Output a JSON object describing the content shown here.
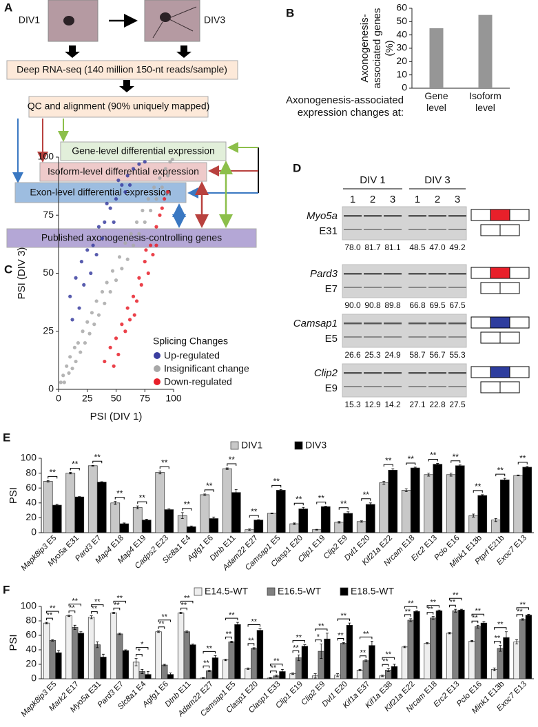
{
  "panel_labels": [
    "A",
    "B",
    "C",
    "D",
    "E",
    "F"
  ],
  "diagram": {
    "stage_labels": [
      "DIV1",
      "DIV3"
    ],
    "boxes": {
      "sequencing": "Deep RNA-seq (140 million 150-nt reads/sample)",
      "qc": "QC and alignment (90% uniquely mapped)",
      "gene": "Gene-level differential expression",
      "isoform": "Isoform-level differential expression",
      "exon": "Exon-level differential expression",
      "published": "Published axonogenesis-controlling genes"
    }
  },
  "gel": {
    "group_labels": [
      "DIV 1",
      "DIV 3"
    ],
    "lanes": [
      "1",
      "2",
      "3",
      "1",
      "2",
      "3"
    ],
    "rows": [
      {
        "gene": "Myo5a",
        "exon": "E31",
        "values": [
          "78.0",
          "81.7",
          "81.1",
          "48.5",
          "47.0",
          "49.2"
        ],
        "exon_color": "#e8202a"
      },
      {
        "gene": "Pard3",
        "exon": "E7",
        "values": [
          "90.0",
          "90.8",
          "89.8",
          "66.8",
          "69.5",
          "67.5"
        ],
        "exon_color": "#e8202a"
      },
      {
        "gene": "Camsap1",
        "exon": "E5",
        "values": [
          "26.6",
          "25.3",
          "24.9",
          "58.7",
          "56.7",
          "55.3"
        ],
        "exon_color": "#2e3d9e"
      },
      {
        "gene": "Clip2",
        "exon": "E9",
        "values": [
          "15.3",
          "12.9",
          "14.2",
          "27.1",
          "22.8",
          "27.5"
        ],
        "exon_color": "#2e3d9e"
      }
    ]
  },
  "chart_data": [
    {
      "type": "bar",
      "y_label": [
        "Axonogenesis-",
        "associated genes",
        "(%)"
      ],
      "x_label": [
        "Axonogenesis-associated",
        "expression changes at:"
      ],
      "categories": [
        "Gene level",
        "Isoform level"
      ],
      "values": [
        45,
        55
      ],
      "color": "#969696",
      "ylim": [
        0,
        60
      ],
      "yticks": [
        0,
        10,
        20,
        30,
        40,
        50,
        60
      ]
    },
    {
      "type": "scatter",
      "x_label": "PSI (DIV 1)",
      "y_label": "PSI (DIV 3)",
      "xlim": [
        0,
        100
      ],
      "ylim": [
        0,
        100
      ],
      "xticks": [
        0,
        25,
        50,
        75,
        100
      ],
      "yticks": [
        0,
        25,
        50,
        75,
        100
      ],
      "legend_title": "Splicing Changes",
      "series": [
        {
          "name": "Up-regulated",
          "color": "#3b3fa0",
          "x": [
            10,
            15,
            20,
            25,
            30,
            35,
            40,
            45,
            50,
            55,
            60,
            18,
            28,
            38,
            48,
            58,
            65,
            70,
            42,
            22,
            33,
            52,
            62,
            12,
            75
          ],
          "values": [
            40,
            48,
            55,
            60,
            62,
            70,
            72,
            78,
            82,
            88,
            92,
            35,
            50,
            65,
            72,
            85,
            95,
            97,
            80,
            45,
            58,
            90,
            88,
            30,
            98
          ]
        },
        {
          "name": "Insignificant change",
          "color": "#a8a8a8",
          "x": [
            2,
            4,
            5,
            7,
            9,
            10,
            12,
            14,
            15,
            17,
            19,
            21,
            23,
            25,
            27,
            29,
            31,
            33,
            35,
            38,
            40,
            42,
            45,
            47,
            50,
            53,
            55,
            58,
            60,
            63,
            65,
            68,
            70,
            73,
            75,
            78,
            80,
            83,
            85,
            88,
            90,
            93,
            95,
            97,
            99
          ],
          "values": [
            3,
            6,
            3,
            10,
            7,
            14,
            9,
            18,
            12,
            20,
            16,
            25,
            20,
            29,
            24,
            33,
            28,
            38,
            32,
            42,
            37,
            46,
            42,
            51,
            47,
            57,
            52,
            63,
            56,
            67,
            62,
            72,
            67,
            77,
            72,
            82,
            77,
            87,
            82,
            91,
            87,
            95,
            92,
            98,
            99
          ]
        },
        {
          "name": "Down-regulated",
          "color": "#e8202a",
          "x": [
            40,
            45,
            50,
            55,
            60,
            65,
            70,
            75,
            80,
            85,
            88,
            92,
            62,
            72,
            78,
            82,
            52,
            58,
            68,
            90,
            48,
            85,
            76,
            95,
            66
          ],
          "values": [
            12,
            18,
            22,
            28,
            35,
            40,
            48,
            55,
            62,
            70,
            75,
            82,
            30,
            45,
            50,
            58,
            15,
            25,
            38,
            78,
            10,
            62,
            60,
            85,
            32
          ]
        }
      ]
    },
    {
      "type": "bar",
      "y_label": "PSI",
      "ylim": [
        0,
        100
      ],
      "yticks": [
        0,
        20,
        40,
        60,
        80,
        100
      ],
      "legend": "top",
      "categories": [
        "Mapk8ip3 E5",
        "Myo5a E31",
        "Pard3 E7",
        "Map4 E18",
        "Map4 E19",
        "Cadps2 E23",
        "Slc8a1 E4",
        "Agfg1 E6",
        "Dtnb E11",
        "Adam22 E27",
        "Camsap1 E5",
        "Clasp1 E20",
        "Clip1 E19",
        "Clip2 E9",
        "Dvl1 E20",
        "Kif21a E22",
        "Nrcam E18",
        "Erc2 E13",
        "Pclo E16",
        "Mink1 E13b",
        "Ptprf E21b",
        "Exoc7 E13"
      ],
      "series": [
        {
          "name": "DIV1",
          "color": "#c8c8c8",
          "values": [
            69,
            80,
            90,
            40,
            34,
            81,
            23,
            51,
            86,
            4,
            26,
            12,
            4,
            14,
            15,
            67,
            57,
            78,
            78,
            23,
            17,
            77
          ],
          "errors": [
            1,
            1,
            0.5,
            2,
            2,
            2,
            4,
            1,
            1,
            1,
            0.5,
            1,
            0.5,
            1,
            1,
            2,
            2,
            2,
            2,
            2,
            2,
            0.5
          ]
        },
        {
          "name": "DIV3",
          "color": "#000000",
          "values": [
            37,
            48,
            68,
            12,
            17,
            31,
            8,
            19,
            54,
            17,
            57,
            32,
            35,
            26,
            38,
            84,
            87,
            92,
            90,
            50,
            71,
            88
          ],
          "errors": [
            1,
            0.5,
            0.5,
            1,
            1,
            1,
            1,
            2,
            4,
            0.5,
            1,
            2,
            0.5,
            2,
            2,
            2,
            1,
            1,
            1,
            1,
            2,
            1
          ]
        }
      ],
      "significance": [
        "**",
        "**",
        "**",
        "**",
        "**",
        "**",
        "**",
        "**",
        "**",
        "**",
        "**",
        "**",
        "**",
        "**",
        "**",
        "**",
        "**",
        "**",
        "**",
        "**",
        "**",
        "**"
      ]
    },
    {
      "type": "bar",
      "y_label": "PSI",
      "ylim": [
        0,
        100
      ],
      "yticks": [
        0,
        20,
        40,
        60,
        80,
        100
      ],
      "legend": "top",
      "categories": [
        "Mapk8ip3 E5",
        "Mark2 E17",
        "Myo5a E31",
        "Pard3 E7",
        "Slc8a1 E4",
        "Agfg1 E6",
        "Dtnb E11",
        "Adam22 E27",
        "Camsap1 E5",
        "Clasp1 E20",
        "Clasp1 E33",
        "Clip1 E19",
        "Clip2 E9",
        "Dvl1 E20",
        "Kif1a E37",
        "Kif1a E38",
        "Kif21a E22",
        "Nrcam E18",
        "Erc2 E13",
        "Pclo E16",
        "Mink1 E13b",
        "Exoc7 E13"
      ],
      "series": [
        {
          "name": "E14.5-WT",
          "color": "#eeeeee",
          "values": [
            77,
            87,
            85,
            91,
            23,
            65,
            91,
            1,
            26,
            14,
            1,
            7,
            4,
            5,
            12,
            4,
            44,
            49,
            63,
            52,
            13,
            51
          ],
          "errors": [
            1,
            1,
            2,
            1,
            5,
            1,
            1,
            0.5,
            1,
            1,
            0.5,
            1,
            3,
            2,
            1,
            1,
            1,
            1,
            1,
            1,
            2,
            3
          ]
        },
        {
          "name": "E16.5-WT",
          "color": "#808080",
          "values": [
            53,
            71,
            47,
            62,
            10,
            19,
            65,
            11,
            51,
            42,
            4,
            29,
            38,
            49,
            25,
            12,
            81,
            84,
            94,
            72,
            42,
            82
          ],
          "errors": [
            1,
            3,
            4,
            1,
            3,
            1,
            1,
            1,
            1,
            1,
            1,
            4,
            10,
            1,
            1,
            2,
            2,
            2,
            2,
            2,
            4,
            1
          ]
        },
        {
          "name": "E18.5-WT",
          "color": "#000000",
          "values": [
            36,
            63,
            30,
            39,
            6,
            6,
            47,
            29,
            75,
            67,
            10,
            45,
            55,
            74,
            46,
            17,
            93,
            94,
            95,
            77,
            57,
            88
          ],
          "errors": [
            3,
            2,
            4,
            1,
            4,
            2,
            1,
            3,
            3,
            2,
            3,
            2,
            8,
            3,
            6,
            3,
            1,
            1,
            1,
            2,
            8,
            1
          ]
        }
      ],
      "significance": [
        [
          "**",
          "**"
        ],
        [
          "**",
          "**"
        ],
        [
          "**",
          "**"
        ],
        [
          "**",
          "**"
        ],
        [
          "*",
          "*"
        ],
        [
          "**",
          "**"
        ],
        [
          "**",
          "**"
        ],
        [
          "**",
          "**"
        ],
        [
          "**",
          "**"
        ],
        [
          "**",
          "**"
        ],
        [
          "**",
          "**"
        ],
        [
          "**",
          "**"
        ],
        [
          "*",
          "**"
        ],
        [
          "**",
          "**"
        ],
        [
          "**",
          "**"
        ],
        [
          "**",
          "**"
        ],
        [
          "**",
          "**"
        ],
        [
          "**",
          "**"
        ],
        [
          "**",
          "**"
        ],
        [
          "**",
          "**"
        ],
        [
          "**",
          "**"
        ],
        [
          "**",
          "**"
        ]
      ]
    }
  ]
}
